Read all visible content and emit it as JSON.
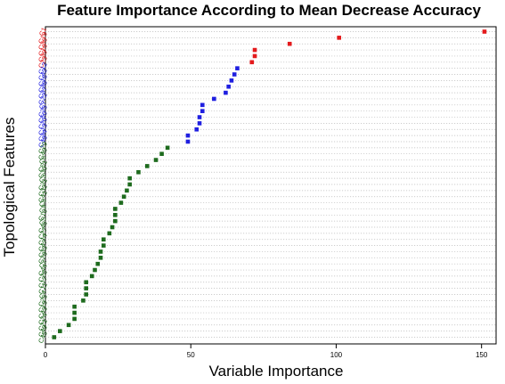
{
  "chart_data": {
    "type": "scatter",
    "title": "Feature Importance According to Mean Decrease Accuracy",
    "xlabel": "Variable Importance",
    "ylabel": "Topological Features",
    "xlim": [
      0,
      155
    ],
    "xticks": [
      0,
      50,
      100,
      150
    ],
    "grid": true,
    "groups": {
      "red": "#e41a1c",
      "blue": "#1f1fe0",
      "green": "#1e6b1e"
    },
    "points": [
      {
        "label": "C1",
        "value": 151,
        "group": "red"
      },
      {
        "label": "C19",
        "value": 101,
        "group": "red"
      },
      {
        "label": "C36",
        "value": 84,
        "group": "red"
      },
      {
        "label": "C16",
        "value": 72,
        "group": "red"
      },
      {
        "label": "C39",
        "value": 72,
        "group": "red"
      },
      {
        "label": "C23",
        "value": 71,
        "group": "red"
      },
      {
        "label": "C12",
        "value": 66,
        "group": "blue"
      },
      {
        "label": "C42",
        "value": 65,
        "group": "blue"
      },
      {
        "label": "C18",
        "value": 64,
        "group": "blue"
      },
      {
        "label": "C38",
        "value": 63,
        "group": "blue"
      },
      {
        "label": "C37",
        "value": 62,
        "group": "blue"
      },
      {
        "label": "C22",
        "value": 58,
        "group": "blue"
      },
      {
        "label": "C7",
        "value": 54,
        "group": "blue"
      },
      {
        "label": "C35",
        "value": 54,
        "group": "blue"
      },
      {
        "label": "C50",
        "value": 53,
        "group": "blue"
      },
      {
        "label": "C20",
        "value": 53,
        "group": "blue"
      },
      {
        "label": "C13",
        "value": 52,
        "group": "blue"
      },
      {
        "label": "C34",
        "value": 49,
        "group": "blue"
      },
      {
        "label": "C48",
        "value": 49,
        "group": "blue"
      },
      {
        "label": "C29",
        "value": 42,
        "group": "green"
      },
      {
        "label": "C40",
        "value": 40,
        "group": "green"
      },
      {
        "label": "C6",
        "value": 38,
        "group": "green"
      },
      {
        "label": "C51",
        "value": 35,
        "group": "green"
      },
      {
        "label": "C30",
        "value": 32,
        "group": "green"
      },
      {
        "label": "C3",
        "value": 29,
        "group": "green"
      },
      {
        "label": "C31",
        "value": 29,
        "group": "green"
      },
      {
        "label": "C32",
        "value": 28,
        "group": "green"
      },
      {
        "label": "C41",
        "value": 27,
        "group": "green"
      },
      {
        "label": "C8",
        "value": 26,
        "group": "green"
      },
      {
        "label": "C9",
        "value": 24,
        "group": "green"
      },
      {
        "label": "C10",
        "value": 24,
        "group": "green"
      },
      {
        "label": "C5",
        "value": 24,
        "group": "green"
      },
      {
        "label": "C46",
        "value": 23,
        "group": "green"
      },
      {
        "label": "C27",
        "value": 22,
        "group": "green"
      },
      {
        "label": "C14",
        "value": 20,
        "group": "green"
      },
      {
        "label": "C47",
        "value": 20,
        "group": "green"
      },
      {
        "label": "C33",
        "value": 19,
        "group": "green"
      },
      {
        "label": "C26",
        "value": 19,
        "group": "green"
      },
      {
        "label": "C2",
        "value": 18,
        "group": "green"
      },
      {
        "label": "C44",
        "value": 17,
        "group": "green"
      },
      {
        "label": "C28",
        "value": 16,
        "group": "green"
      },
      {
        "label": "C17",
        "value": 14,
        "group": "green"
      },
      {
        "label": "C11",
        "value": 14,
        "group": "green"
      },
      {
        "label": "C4",
        "value": 14,
        "group": "green"
      },
      {
        "label": "C25",
        "value": 13,
        "group": "green"
      },
      {
        "label": "C15",
        "value": 10,
        "group": "green"
      },
      {
        "label": "C43",
        "value": 10,
        "group": "green"
      },
      {
        "label": "C24",
        "value": 10,
        "group": "green"
      },
      {
        "label": "C21",
        "value": 8,
        "group": "green"
      },
      {
        "label": "C49",
        "value": 5,
        "group": "green"
      },
      {
        "label": "C45",
        "value": 3,
        "group": "green"
      }
    ]
  }
}
